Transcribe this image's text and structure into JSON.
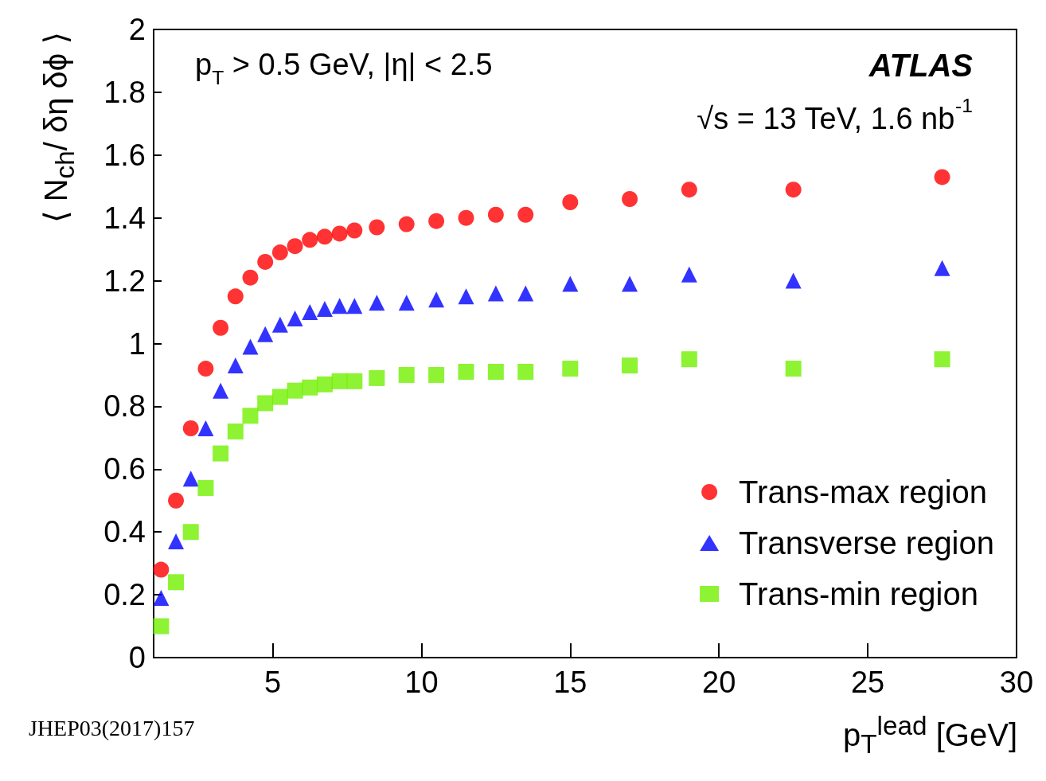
{
  "chart_data": {
    "type": "scatter",
    "xlabel": "p$_{T}$$^{lead}$ [GeV]",
    "ylabel": "⟨ N$_{ch}$/ δη δϕ ⟩",
    "annotations": [
      "p$_{T}$ > 0.5 GeV, |η| < 2.5",
      "ATLAS",
      "√s = 13 TeV, 1.6 nb$^{-1}$",
      "JHEP03(2017)157"
    ],
    "x": [
      1.25,
      1.75,
      2.25,
      2.75,
      3.25,
      3.75,
      4.25,
      4.75,
      5.25,
      5.75,
      6.25,
      6.75,
      7.25,
      7.75,
      8.5,
      9.5,
      10.5,
      11.5,
      12.5,
      13.5,
      15,
      17,
      19,
      22.5,
      27.5
    ],
    "series": [
      {
        "name": "Trans-max region",
        "color": "#ff0000",
        "marker": "circle",
        "values": [
          0.28,
          0.5,
          0.73,
          0.92,
          1.05,
          1.15,
          1.21,
          1.26,
          1.29,
          1.31,
          1.33,
          1.34,
          1.35,
          1.36,
          1.37,
          1.38,
          1.39,
          1.4,
          1.41,
          1.41,
          1.45,
          1.46,
          1.49,
          1.49,
          1.53
        ]
      },
      {
        "name": "Transverse region",
        "color": "#0000ff",
        "marker": "triangle",
        "values": [
          0.19,
          0.37,
          0.57,
          0.73,
          0.85,
          0.93,
          0.99,
          1.03,
          1.06,
          1.08,
          1.1,
          1.11,
          1.12,
          1.12,
          1.13,
          1.13,
          1.14,
          1.15,
          1.16,
          1.16,
          1.19,
          1.19,
          1.22,
          1.2,
          1.24
        ]
      },
      {
        "name": "Trans-min region",
        "color": "#70f000",
        "marker": "square",
        "values": [
          0.1,
          0.24,
          0.4,
          0.54,
          0.65,
          0.72,
          0.77,
          0.81,
          0.83,
          0.85,
          0.86,
          0.87,
          0.88,
          0.88,
          0.89,
          0.9,
          0.9,
          0.91,
          0.91,
          0.91,
          0.92,
          0.93,
          0.95,
          0.92,
          0.95
        ]
      }
    ],
    "xlim": [
      1,
      30
    ],
    "xticks": [
      5,
      10,
      15,
      20,
      25,
      30
    ],
    "ylim": [
      0,
      2
    ],
    "yticks": [
      0,
      0.2,
      0.4,
      0.6,
      0.8,
      1,
      1.2,
      1.4,
      1.6,
      1.8,
      2
    ],
    "legend": "bottom right",
    "grid": false
  }
}
